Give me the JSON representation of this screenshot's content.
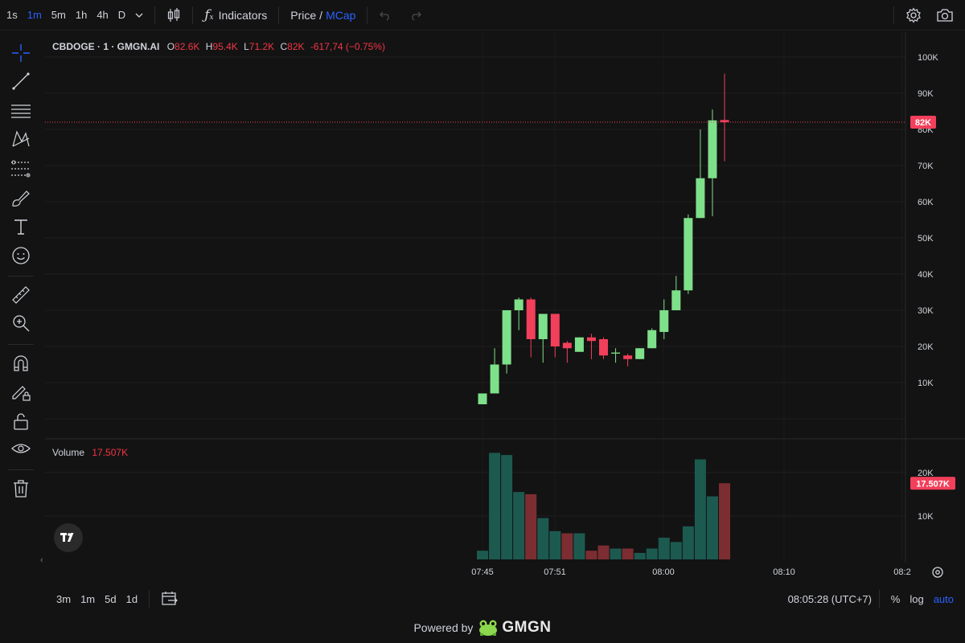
{
  "toolbar": {
    "timeframes": [
      "1s",
      "1m",
      "5m",
      "1h",
      "4h",
      "D"
    ],
    "active_timeframe": "1m",
    "indicators_label": "Indicators",
    "price_label": "Price",
    "slash": "/",
    "mcap_label": "MCap"
  },
  "legend": {
    "symbol": "CBDOGE · 1 · GMGN.AI",
    "open_key": "O",
    "open": "82.6K",
    "high_key": "H",
    "high": "95.4K",
    "low_key": "L",
    "low": "71.2K",
    "close_key": "C",
    "close": "82K",
    "change": "-617,74 (−0.75%)"
  },
  "volume_legend": {
    "label": "Volume",
    "value": "17.507K"
  },
  "price_badge": "82K",
  "volume_badge": "17.507K",
  "bottom": {
    "ranges": [
      "3m",
      "1m",
      "5d",
      "1d"
    ],
    "clock": "08:05:28 (UTC+7)",
    "percent": "%",
    "log": "log",
    "auto": "auto"
  },
  "footer": {
    "powered": "Powered by",
    "brand": "GMGN"
  },
  "colors": {
    "up": "#7ee08a",
    "down": "#f23f5a",
    "vol_up": "#1c5a50",
    "vol_down": "#7c2d31",
    "accent": "#2962ff"
  },
  "chart_data": [
    {
      "type": "candlestick",
      "price_axis": {
        "ticks": [
          "10K",
          "20K",
          "30K",
          "40K",
          "50K",
          "60K",
          "70K",
          "80K",
          "90K",
          "100K"
        ],
        "tick_values": [
          10000,
          20000,
          30000,
          40000,
          50000,
          60000,
          70000,
          80000,
          90000,
          100000
        ],
        "ylim": [
          0,
          100000
        ]
      },
      "time_axis": {
        "ticks": [
          "07:45",
          "07:51",
          "08:00",
          "08:10",
          "08:2"
        ]
      },
      "last_price": 82000,
      "candles": [
        {
          "o": 4000,
          "h": 7000,
          "l": 4000,
          "c": 7000
        },
        {
          "o": 7000,
          "h": 19500,
          "l": 7000,
          "c": 15000
        },
        {
          "o": 15000,
          "h": 30000,
          "l": 12500,
          "c": 30000
        },
        {
          "o": 30000,
          "h": 33500,
          "l": 24500,
          "c": 33000
        },
        {
          "o": 33000,
          "h": 33500,
          "l": 17000,
          "c": 22000
        },
        {
          "o": 22000,
          "h": 29000,
          "l": 15500,
          "c": 29000
        },
        {
          "o": 29000,
          "h": 29000,
          "l": 17000,
          "c": 20000
        },
        {
          "o": 21000,
          "h": 21500,
          "l": 15500,
          "c": 19500
        },
        {
          "o": 18500,
          "h": 22500,
          "l": 18500,
          "c": 22500
        },
        {
          "o": 22500,
          "h": 23500,
          "l": 16500,
          "c": 21500
        },
        {
          "o": 22000,
          "h": 22500,
          "l": 16500,
          "c": 17500
        },
        {
          "o": 18000,
          "h": 19500,
          "l": 15500,
          "c": 18300
        },
        {
          "o": 17500,
          "h": 18000,
          "l": 14500,
          "c": 16500
        },
        {
          "o": 16500,
          "h": 19500,
          "l": 16500,
          "c": 19500
        },
        {
          "o": 19500,
          "h": 25000,
          "l": 19500,
          "c": 24500
        },
        {
          "o": 24000,
          "h": 33000,
          "l": 22000,
          "c": 30000
        },
        {
          "o": 30000,
          "h": 39500,
          "l": 30000,
          "c": 35500
        },
        {
          "o": 35500,
          "h": 56500,
          "l": 34500,
          "c": 55500
        },
        {
          "o": 55500,
          "h": 80000,
          "l": 55500,
          "c": 66500
        },
        {
          "o": 66500,
          "h": 85500,
          "l": 56000,
          "c": 82500
        },
        {
          "o": 82600,
          "h": 95400,
          "l": 71200,
          "c": 82000
        }
      ]
    },
    {
      "type": "bar",
      "title": "Volume",
      "y_ticks": [
        "10K",
        "20K"
      ],
      "y_tick_values": [
        10000,
        20000
      ],
      "ylim": [
        0,
        25500
      ],
      "values": [
        2000,
        24500,
        24000,
        15500,
        15000,
        9500,
        6500,
        6000,
        6000,
        2000,
        3200,
        2500,
        2500,
        1500,
        2500,
        5000,
        4000,
        7600,
        23000,
        14500,
        17507
      ],
      "directions": [
        "up",
        "up",
        "up",
        "up",
        "down",
        "up",
        "up",
        "down",
        "up",
        "down",
        "down",
        "up",
        "down",
        "up",
        "up",
        "up",
        "up",
        "up",
        "up",
        "up",
        "down"
      ]
    }
  ]
}
